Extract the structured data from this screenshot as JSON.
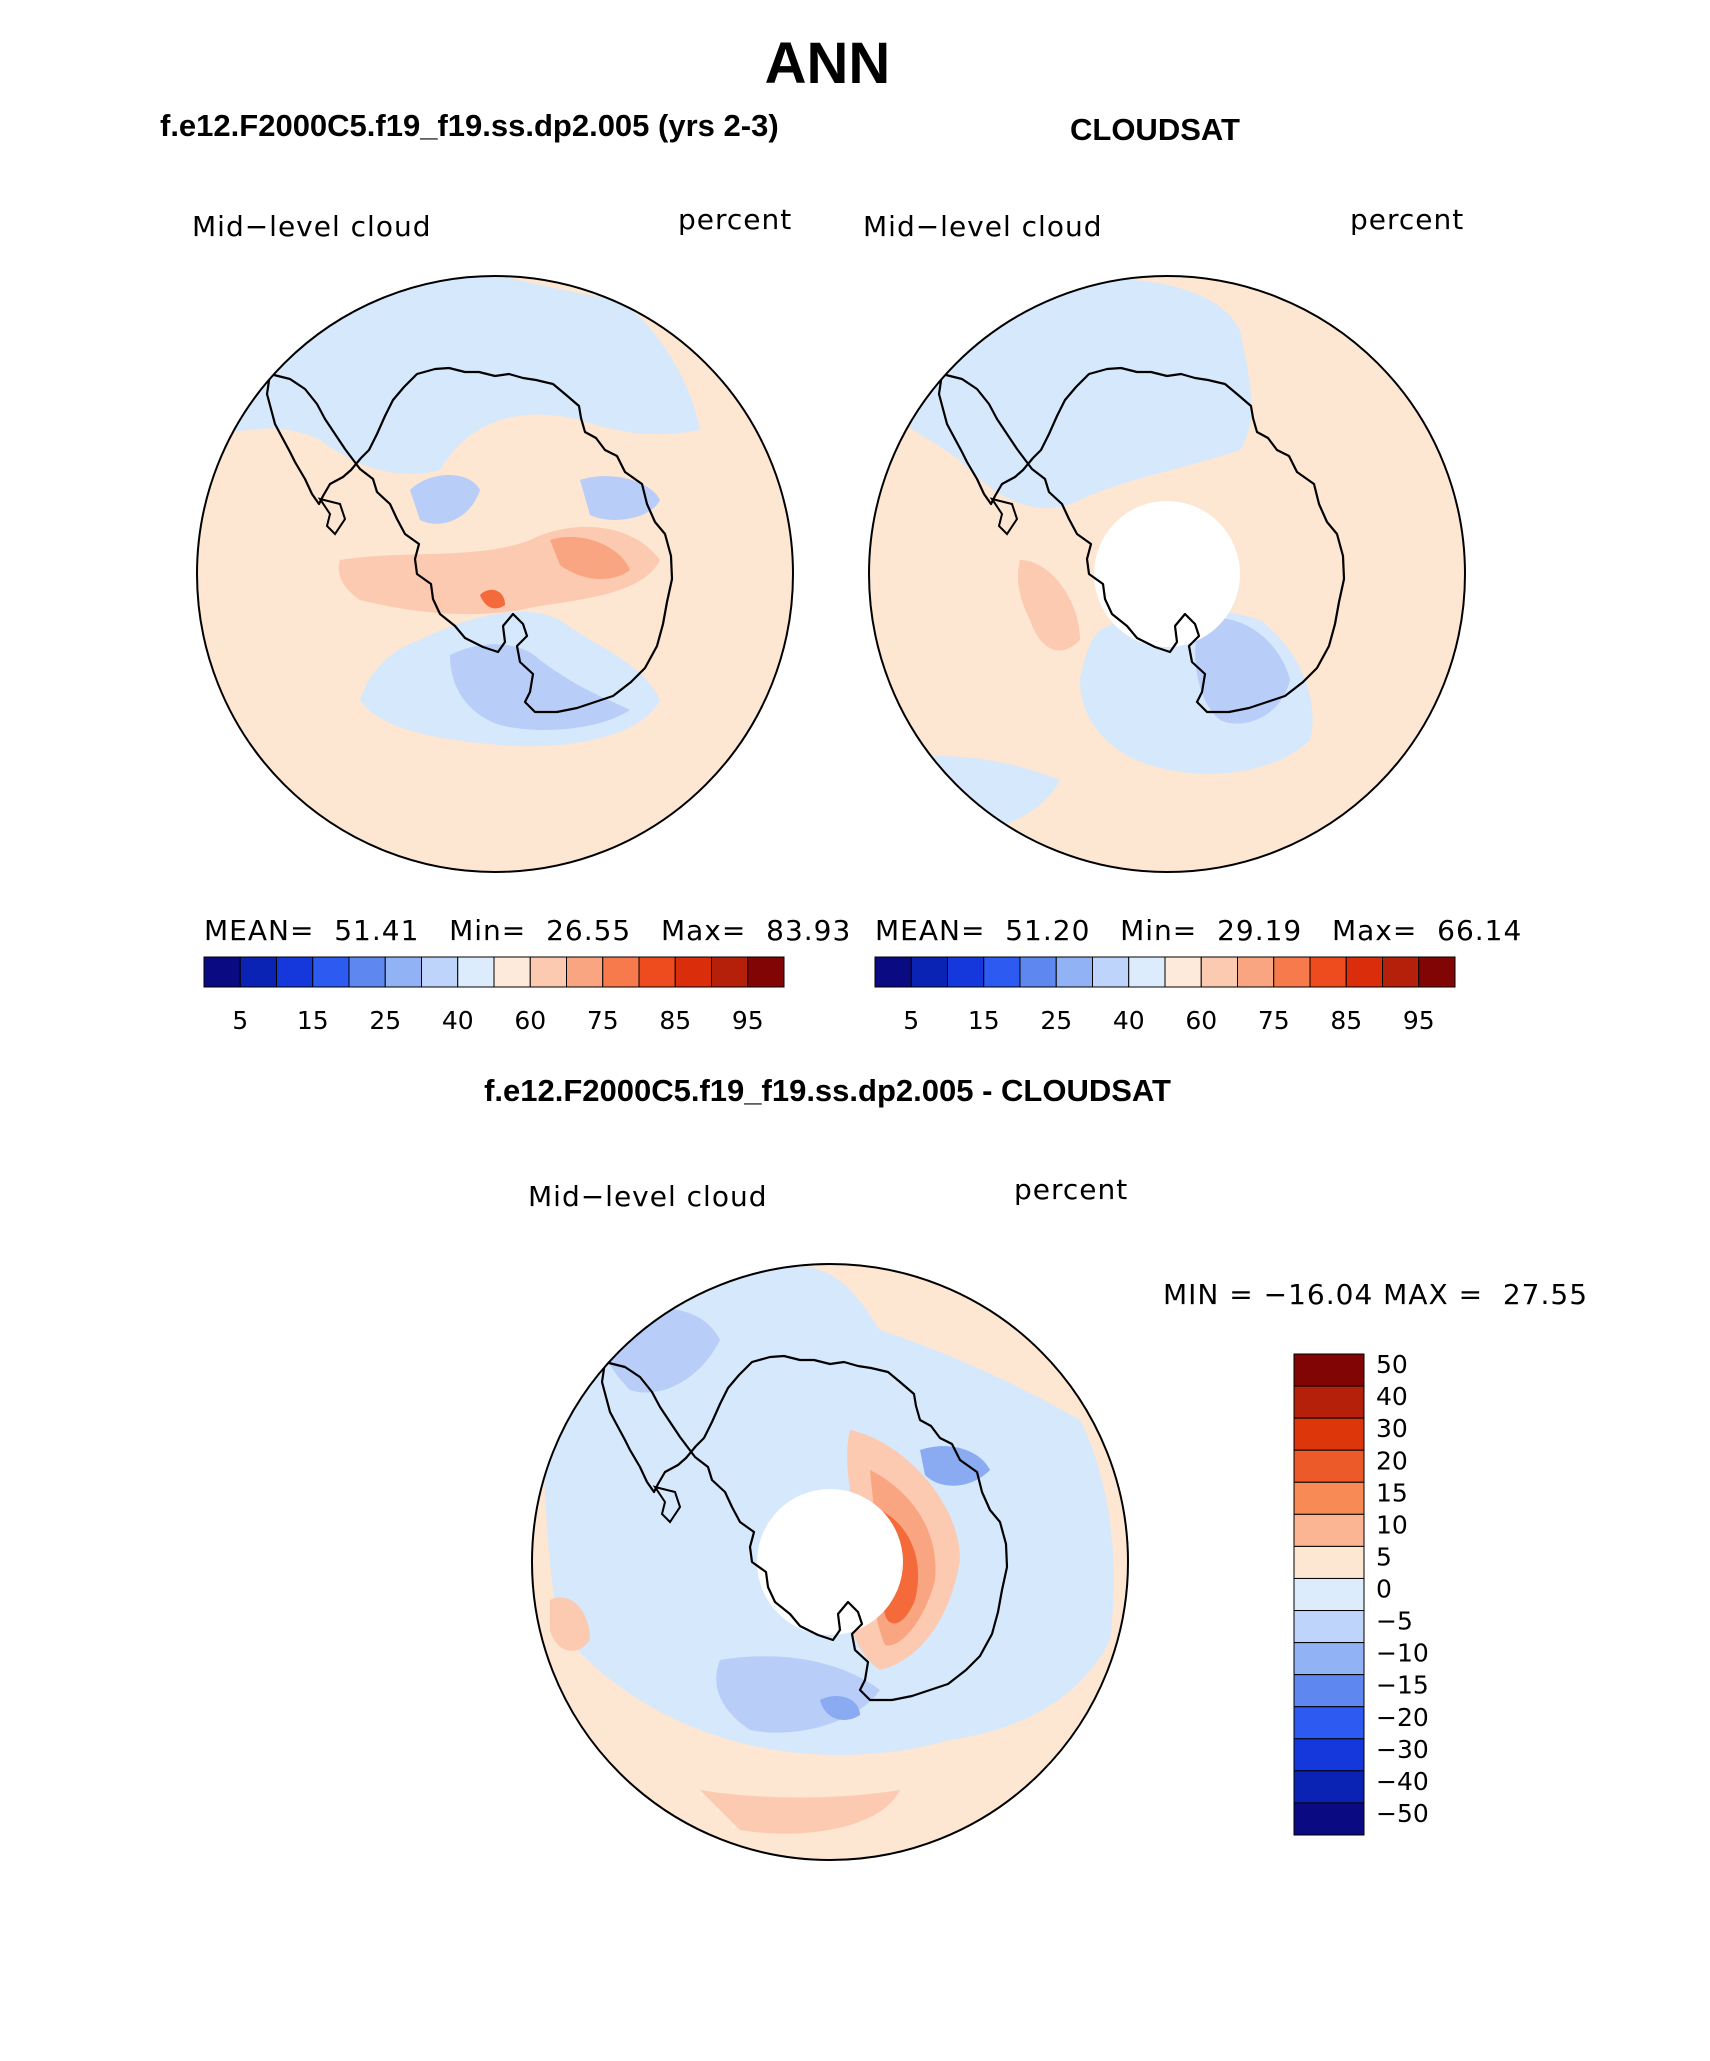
{
  "title": "ANN",
  "left_panel": {
    "title": "f.e12.F2000C5.f19_f19.ss.dp2.005 (yrs 2-3)",
    "variable": "Mid−level cloud",
    "units": "percent",
    "stats": {
      "mean_label": "MEAN=",
      "mean": "51.41",
      "min_label": "Min=",
      "min": "26.55",
      "max_label": "Max=",
      "max": "83.93"
    }
  },
  "right_panel": {
    "title": "CLOUDSAT",
    "variable": "Mid−level cloud",
    "units": "percent",
    "stats": {
      "mean_label": "MEAN=",
      "mean": "51.20",
      "min_label": "Min=",
      "min": "29.19",
      "max_label": "Max=",
      "max": "66.14"
    }
  },
  "diff_panel": {
    "title": "f.e12.F2000C5.f19_f19.ss.dp2.005 - CLOUDSAT",
    "variable": "Mid−level cloud",
    "units": "percent",
    "minmax": {
      "min_label": "MIN =",
      "min": "−16.04",
      "max_label": "MAX =",
      "max": "27.55"
    }
  },
  "colorbar_abs": {
    "tick_labels": [
      "5",
      "15",
      "25",
      "40",
      "60",
      "75",
      "85",
      "95"
    ],
    "colors": [
      "#0a0a82",
      "#0a23b4",
      "#1438dc",
      "#2d5af0",
      "#5f87f0",
      "#91b2f5",
      "#bed4fa",
      "#dcecfc",
      "#fdeada",
      "#fccab0",
      "#f9a582",
      "#f67a4b",
      "#ee4b1e",
      "#d92d0c",
      "#b4200a",
      "#820505"
    ]
  },
  "colorbar_diff": {
    "tick_labels": [
      "50",
      "40",
      "30",
      "20",
      "15",
      "10",
      "5",
      "0",
      "−5",
      "−10",
      "−15",
      "−20",
      "−30",
      "−40",
      "−50"
    ],
    "colors": [
      "#820505",
      "#b4200a",
      "#dc360a",
      "#eb5a28",
      "#f88a55",
      "#fbb592",
      "#fde6d2",
      "#dcecfc",
      "#bed4fa",
      "#91b2f5",
      "#5f87f0",
      "#2d5af0",
      "#1438dc",
      "#0a23b4",
      "#0a0a82"
    ]
  },
  "fill_colors": {
    "background": "#fde6d2",
    "light_blue": "#d6e8fc",
    "medium_blue": "#b8cef8",
    "blue": "#8aaaf2",
    "light_orange": "#fccab0",
    "orange": "#f9a582",
    "red_orange": "#f46a3a"
  }
}
